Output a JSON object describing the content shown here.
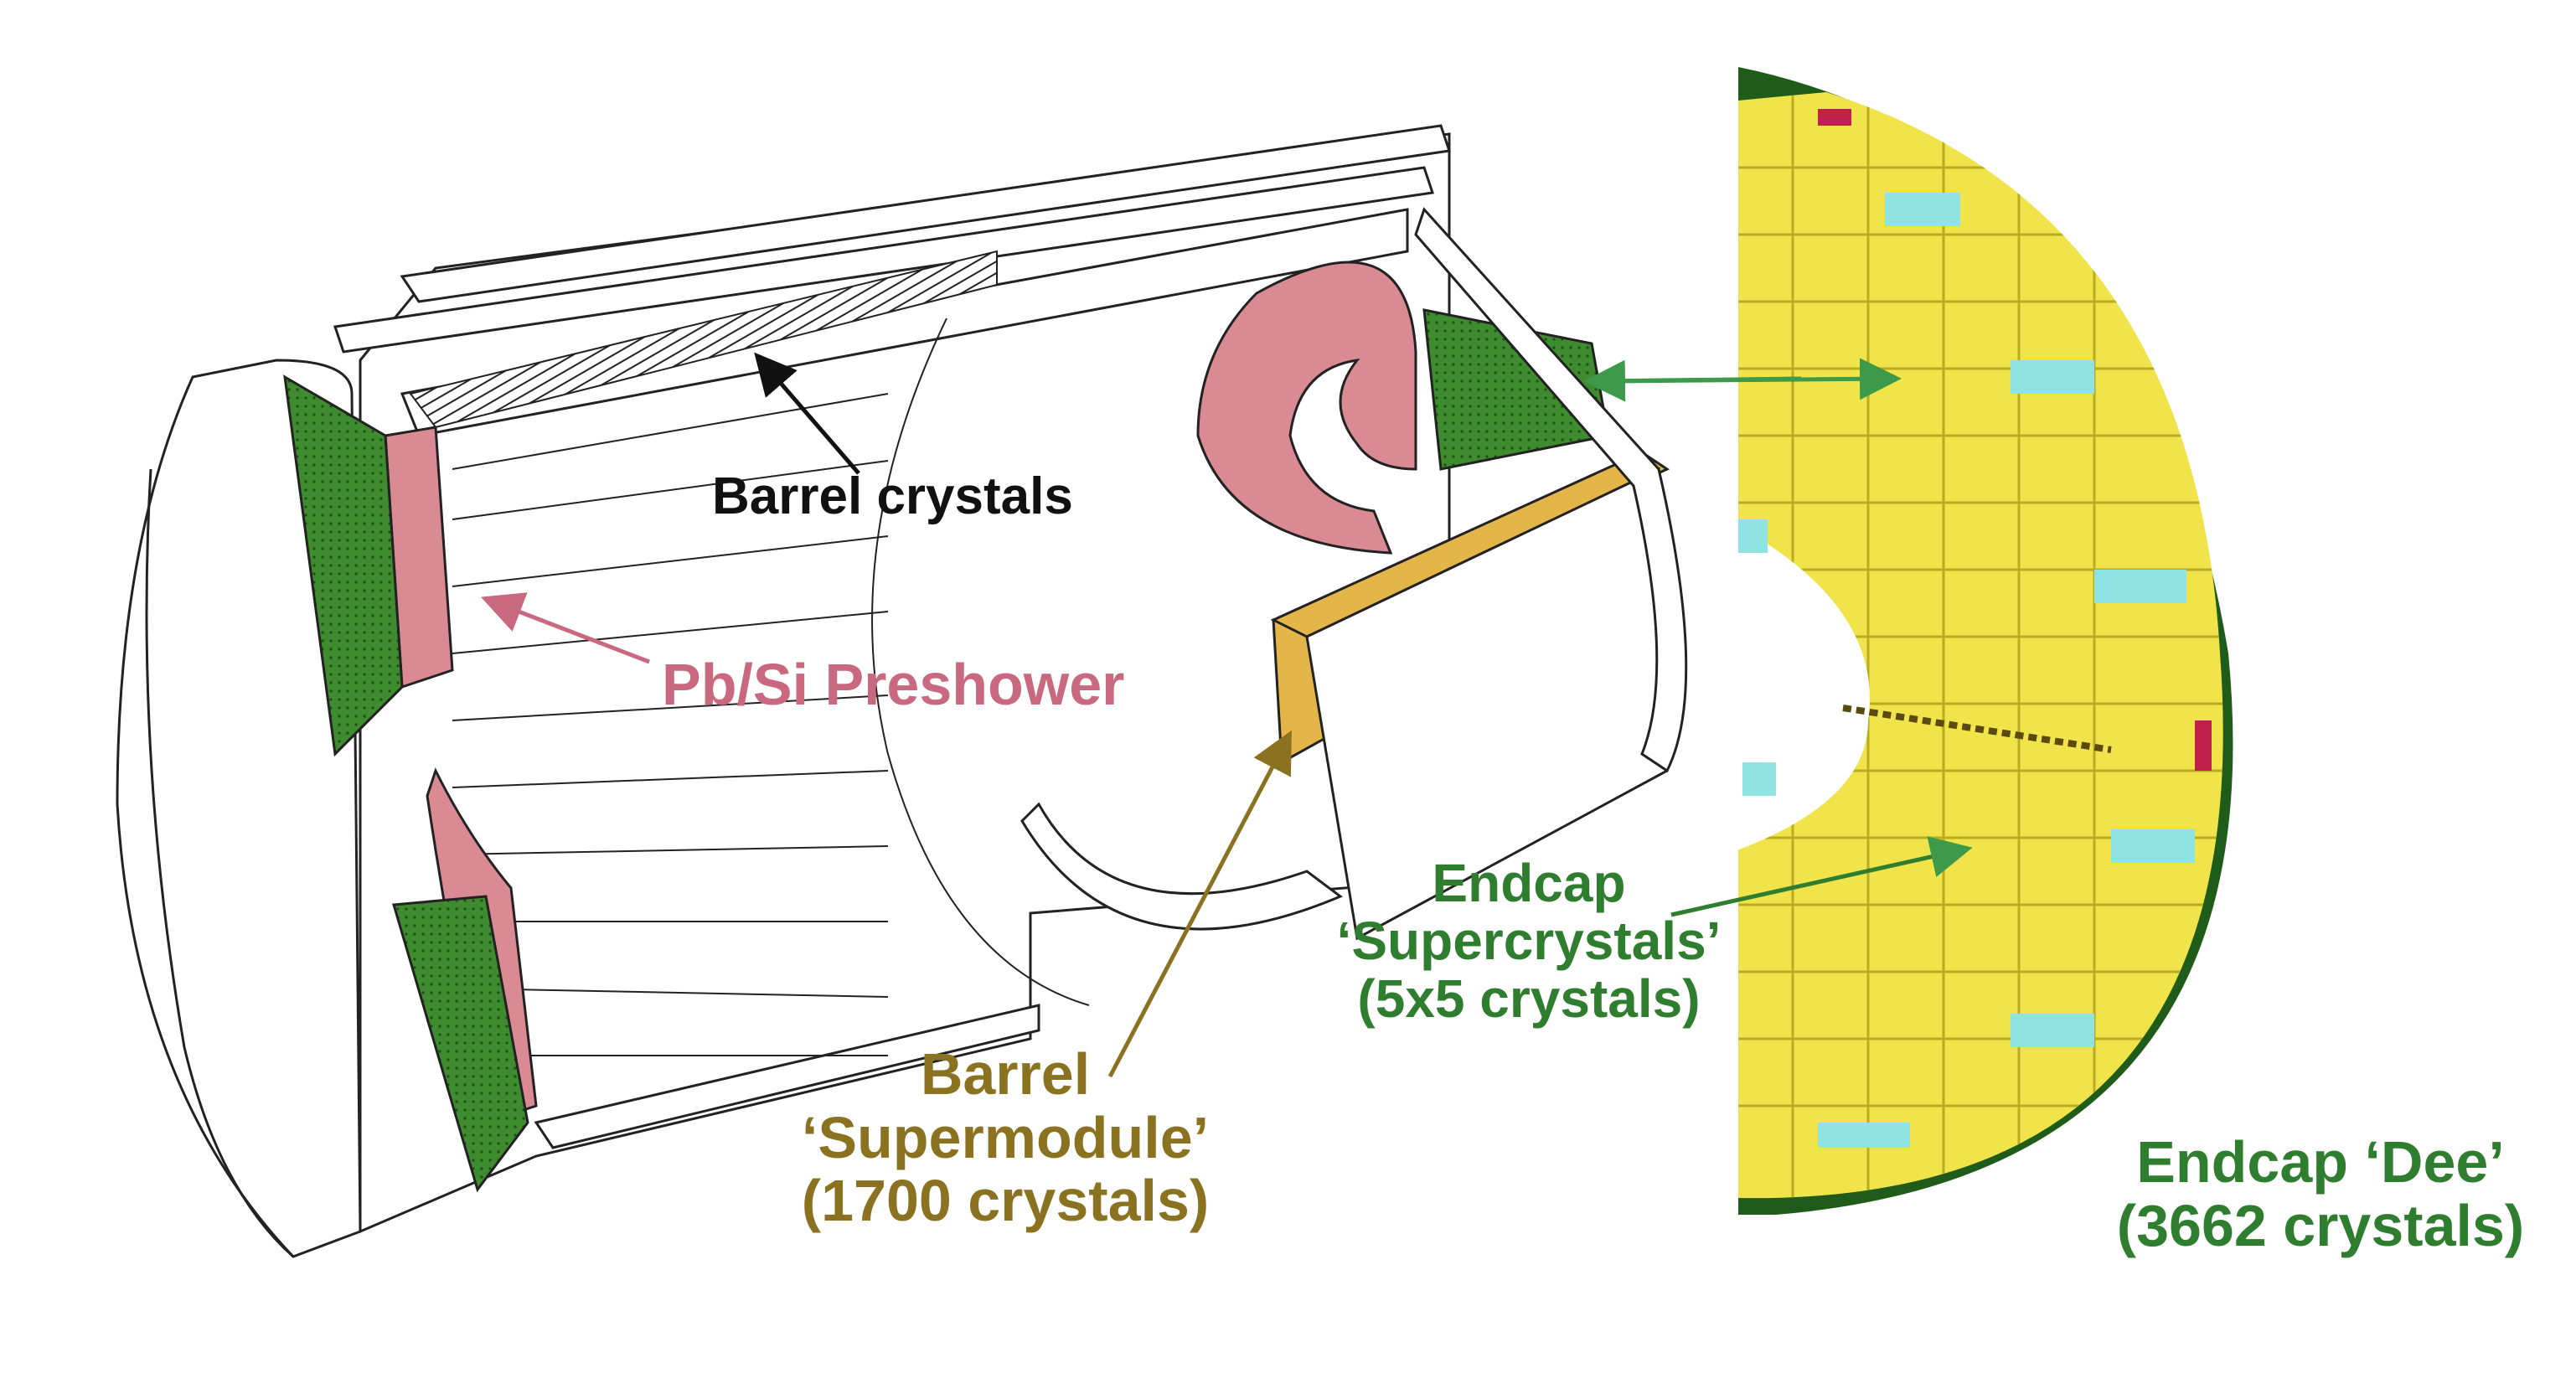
{
  "labels": {
    "barrel_crystals": "Barrel crystals",
    "preshower": "Pb/Si Preshower",
    "barrel_supermodule": [
      "Barrel",
      "‘Supermodule’",
      "(1700 crystals)"
    ],
    "endcap_supercrystals": [
      "Endcap",
      "‘Supercrystals’",
      "(5x5 crystals)"
    ],
    "endcap_dee": [
      "Endcap ‘Dee’",
      "(3662 crystals)"
    ]
  },
  "colors": {
    "black_text": "#111111",
    "preshower_pink": "#c8697f",
    "supermodule_gold": "#8a7220",
    "endcap_green": "#2f7d2f",
    "preshower_fill": "#d98a92",
    "green_fill": "#3f8b2f",
    "gold_fill": "#e4b64a",
    "crystal_yellow": "#f0e44a",
    "cyan": "#8fe3e3",
    "dee_border": "#1f5c1a",
    "magenta": "#c0204a"
  }
}
